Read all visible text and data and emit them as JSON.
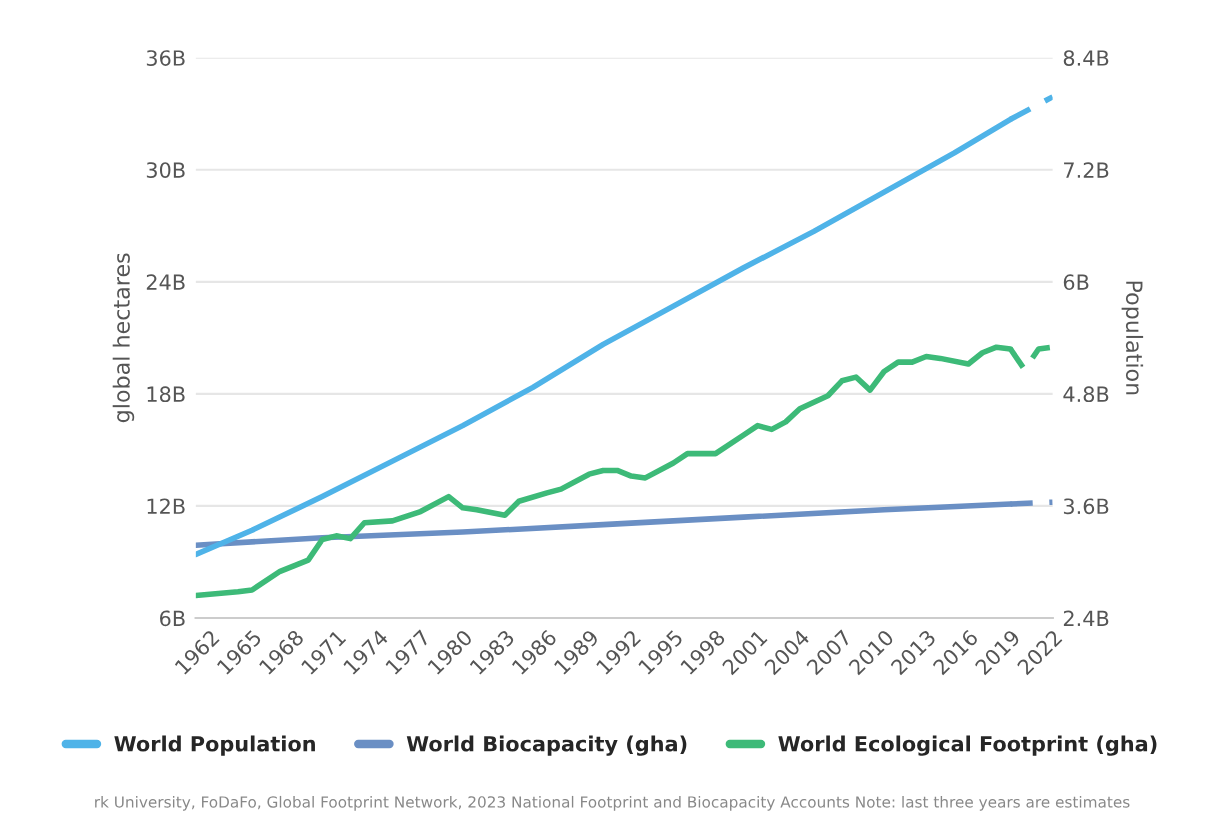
{
  "chart_data": {
    "type": "line",
    "ylabel": "global hectares",
    "y2label": "Population",
    "xlim": [
      1961,
      2022
    ],
    "xticks": [
      1962,
      1965,
      1968,
      1971,
      1974,
      1977,
      1980,
      1983,
      1986,
      1989,
      1992,
      1995,
      1998,
      2001,
      2004,
      2007,
      2010,
      2013,
      2016,
      2019,
      2022
    ],
    "ylim": [
      6,
      36
    ],
    "yticks": [
      {
        "value": 6,
        "label": "6B"
      },
      {
        "value": 12,
        "label": "12B"
      },
      {
        "value": 18,
        "label": "18B"
      },
      {
        "value": 24,
        "label": "24B"
      },
      {
        "value": 30,
        "label": "30B"
      },
      {
        "value": 36,
        "label": "36B"
      }
    ],
    "y2lim": [
      2.4,
      8.4
    ],
    "y2ticks": [
      {
        "value": 2.4,
        "label": "2.4B"
      },
      {
        "value": 3.6,
        "label": "3.6B"
      },
      {
        "value": 4.8,
        "label": "4.8B"
      },
      {
        "value": 6,
        "label": "6B"
      },
      {
        "value": 7.2,
        "label": "7.2B"
      },
      {
        "value": 8.4,
        "label": "8.4B"
      }
    ],
    "grid": "y",
    "legend": "bottom",
    "marker": "none",
    "series": [
      {
        "name": "World Population",
        "color": "#4fb3e8",
        "axis": "y2",
        "line_style": "solid",
        "x": [
          1961,
          1965,
          1970,
          1975,
          1980,
          1985,
          1990,
          1995,
          2000,
          2005,
          2010,
          2015,
          2019
        ],
        "values": [
          3.08,
          3.34,
          3.7,
          4.08,
          4.46,
          4.87,
          5.33,
          5.74,
          6.15,
          6.54,
          6.96,
          7.38,
          7.74
        ]
      },
      {
        "color": "#4fb3e8",
        "axis": "y2",
        "line_style": "dashed",
        "x": [
          2019,
          2022
        ],
        "values": [
          7.74,
          7.98
        ]
      },
      {
        "name": "World Biocapacity (gha)",
        "color": "#6a8fc4",
        "line_style": "solid",
        "x": [
          1961,
          1970,
          1980,
          1990,
          2000,
          2010,
          2019
        ],
        "values": [
          9.9,
          10.3,
          10.6,
          11.0,
          11.4,
          11.8,
          12.1
        ]
      },
      {
        "color": "#6a8fc4",
        "line_style": "dashed",
        "x": [
          2019,
          2022
        ],
        "values": [
          12.1,
          12.2
        ]
      },
      {
        "name": "World Ecological Footprint (gha)",
        "color": "#3dba78",
        "line_style": "solid",
        "x": [
          1961,
          1964,
          1965,
          1967,
          1969,
          1970,
          1971,
          1972,
          1973,
          1975,
          1977,
          1979,
          1980,
          1981,
          1983,
          1984,
          1986,
          1987,
          1989,
          1990,
          1991,
          1992,
          1993,
          1995,
          1996,
          1998,
          2000,
          2001,
          2002,
          2003,
          2004,
          2006,
          2007,
          2008,
          2009,
          2010,
          2011,
          2012,
          2013,
          2014,
          2016,
          2017,
          2018,
          2019
        ],
        "values": [
          7.2,
          7.4,
          7.5,
          8.5,
          9.1,
          10.2,
          10.4,
          10.25,
          11.1,
          11.2,
          11.7,
          12.5,
          11.9,
          11.8,
          11.5,
          12.25,
          12.7,
          12.9,
          13.7,
          13.9,
          13.9,
          13.6,
          13.5,
          14.3,
          14.8,
          14.8,
          15.8,
          16.3,
          16.1,
          16.5,
          17.2,
          17.9,
          18.7,
          18.9,
          18.2,
          19.2,
          19.7,
          19.7,
          20.0,
          19.9,
          19.6,
          20.2,
          20.5,
          20.4
        ]
      },
      {
        "color": "#3dba78",
        "line_style": "dashed",
        "x": [
          2019,
          2020,
          2021,
          2022
        ],
        "values": [
          20.4,
          19.3,
          20.4,
          20.5
        ]
      }
    ],
    "annotations": [
      "rk University, FoDaFo, Global Footprint Network, 2023 National Footprint and Biocapacity Accounts Note: last three years are estimates"
    ]
  }
}
